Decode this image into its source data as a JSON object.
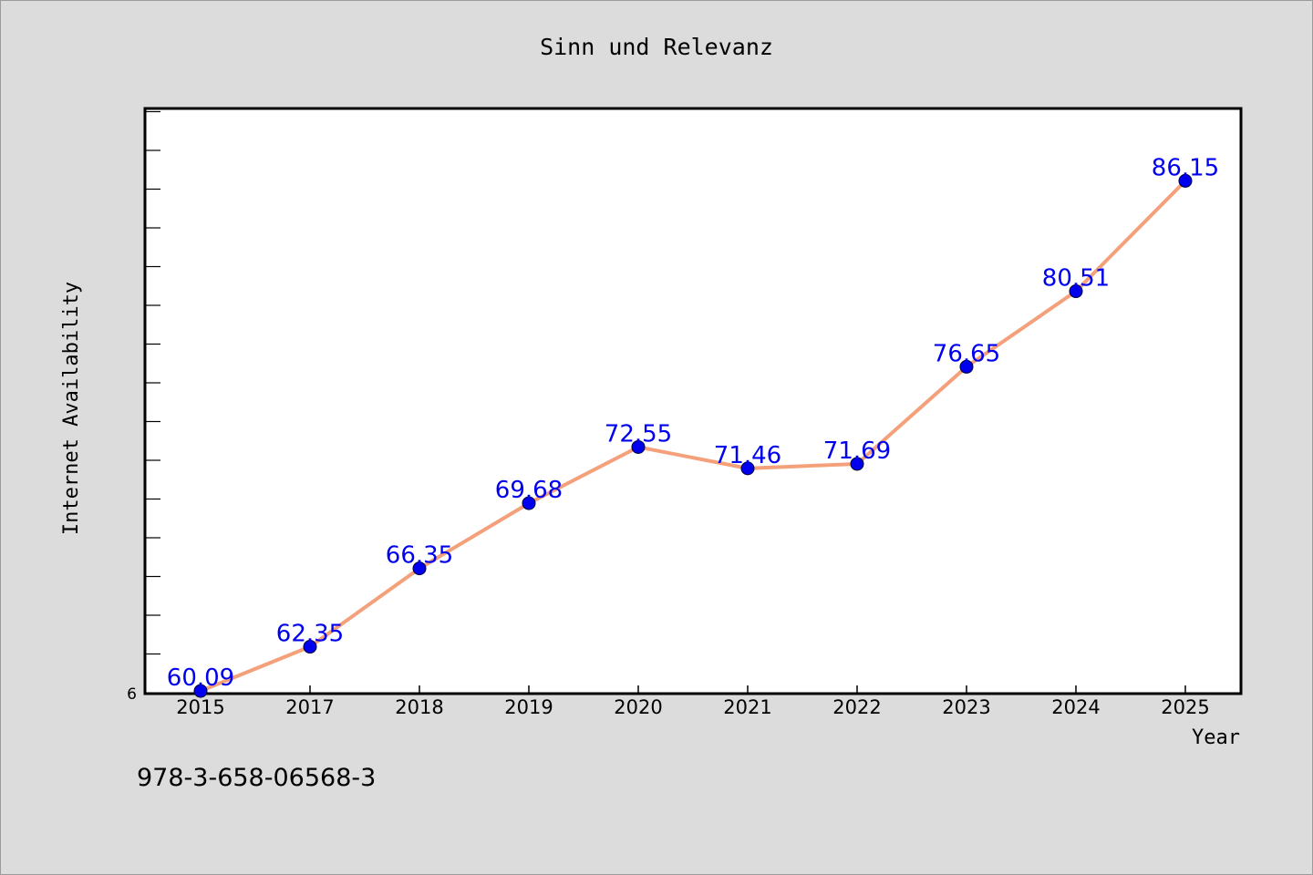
{
  "chart_data": {
    "type": "line",
    "title": "Sinn und Relevanz",
    "xlabel": "Year",
    "ylabel": "Internet Availability",
    "categories": [
      "2015",
      "2017",
      "2018",
      "2019",
      "2020",
      "2021",
      "2022",
      "2023",
      "2024",
      "2025"
    ],
    "series": [
      {
        "values": [
          60.09,
          62.35,
          66.35,
          69.68,
          72.55,
          71.46,
          71.69,
          76.65,
          80.51,
          86.15
        ],
        "labels": [
          "60.09",
          "62.35",
          "66.35",
          "69.68",
          "72.55",
          "71.46",
          "71.69",
          "76.65",
          "80.51",
          "86.15"
        ],
        "line_color": "#f4a07a",
        "marker_color": "#0000ee"
      }
    ],
    "ylim": [
      60,
      89.8
    ],
    "y_tick_label": "6",
    "grid": false,
    "legend": "none",
    "label_color": "#0000ee",
    "background": "#dcdcdc",
    "plot_background": "#ffffff"
  },
  "footer_text": "978-3-658-06568-3"
}
